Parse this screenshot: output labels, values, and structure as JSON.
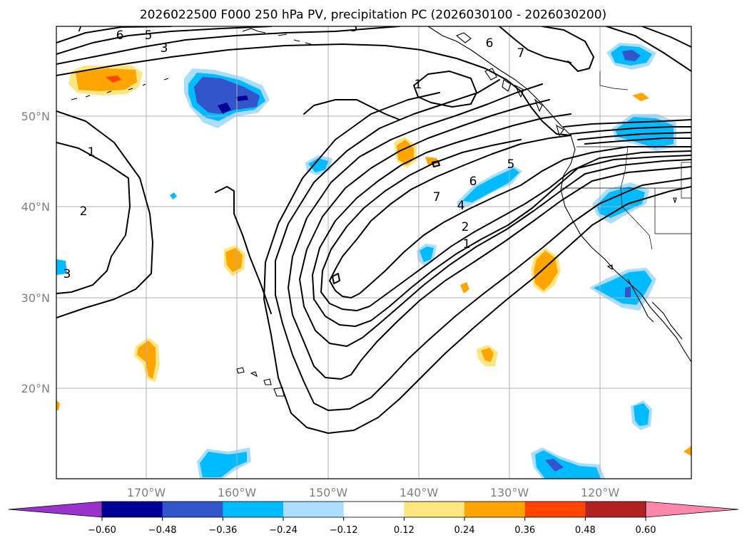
{
  "title": "2026022500 F000 250 hPa PV, precipitation PC (2026030100 - 2026030200)",
  "lat_labels": [
    "50°N",
    "40°N",
    "30°N",
    "20°N"
  ],
  "lon_labels": [
    "170°W",
    "160°W",
    "150°W",
    "140°W",
    "130°W",
    "120°W"
  ],
  "colorbar": {
    "ticks": [
      "−0.60",
      "−0.48",
      "−0.36",
      "−0.24",
      "−0.12",
      "0.12",
      "0.24",
      "0.36",
      "0.48",
      "0.60"
    ],
    "colors": [
      "#9933cc",
      "#000099",
      "#3355cc",
      "#00bbff",
      "#aaddff",
      "#ffffff",
      "#ffe680",
      "#ffa500",
      "#ff4500",
      "#b22222",
      "#ff88aa"
    ]
  },
  "contour_labels": [
    "1",
    "2",
    "3",
    "4",
    "5",
    "6",
    "7"
  ]
}
